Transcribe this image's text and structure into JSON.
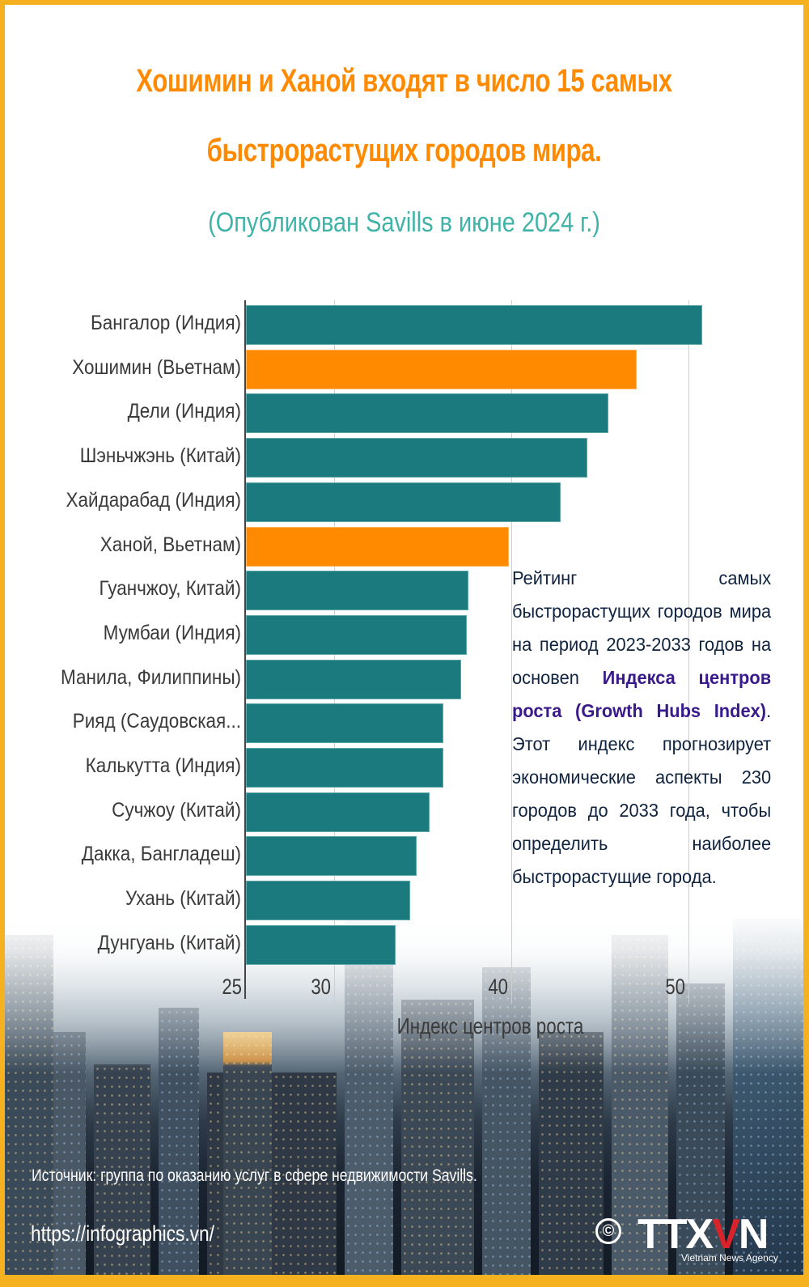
{
  "header": {
    "title_line1": "Хошимин и Ханой входят в число 15 самых",
    "title_line2": "быстрорастущих городов мира.",
    "subtitle": "(Опубликован Savills в июне 2024 г.)"
  },
  "colors": {
    "frame": "#f5b120",
    "title": "#ff8a00",
    "subtitle": "#3fb3a8",
    "bar_default": "#1a7a7e",
    "bar_highlight": "#ff8a00",
    "note_highlight": "#3a1a8a"
  },
  "chart_data": {
    "type": "bar",
    "orientation": "horizontal",
    "title": "Хошимин и Ханой входят в число 15 самых быстрорастущих городов мира.",
    "subtitle": "(Опубликован Savills в июне 2024 г.)",
    "xlabel": "Индекс центров роста",
    "ylabel": "",
    "xlim": [
      25,
      52
    ],
    "x_ticks": [
      "25",
      "30",
      "40",
      "50"
    ],
    "grid": true,
    "legend": null,
    "categories": [
      "Бангалор (Индия)",
      "Хошимин (Вьетнам)",
      "Дели (Индия)",
      "Шэньчжэнь (Китай)",
      "Хайдарабад (Индия)",
      "Ханой, Вьетнам)",
      "Гуанчжоу, Китай)",
      "Мумбаи (Индия)",
      "Манила, Филиппины)",
      "Рияд (Саудовская...",
      "Калькутта (Индия)",
      "Сучжоу (Китай)",
      "Дакка, Бангладеш)",
      "Ухань (Китай)",
      "Дунгуань (Китай)"
    ],
    "values": [
      50.8,
      47.1,
      45.5,
      44.3,
      42.8,
      39.9,
      37.6,
      37.5,
      37.2,
      36.2,
      36.2,
      35.4,
      34.7,
      34.3,
      33.5
    ],
    "highlighted": [
      false,
      true,
      false,
      false,
      false,
      true,
      false,
      false,
      false,
      false,
      false,
      false,
      false,
      false,
      false
    ]
  },
  "note": {
    "part1": "Рейтинг самых быстрорастущих городов мира на период 2023-2033 годов на основеn ",
    "highlight": "Индекса центров роста (Growth Hubs Index)",
    "part2": ". Этот индекс прогнозирует экономические аспекты 230 городов до 2033 года, чтобы определить наиболее быстрорастущие города."
  },
  "footer": {
    "source": "Источник: группа по оказанию услуг в сфере недвижимости Savills.",
    "url": "https://infographics.vn/",
    "copyright_symbol": "©",
    "logo_text_a": "TTX",
    "logo_text_v": "V",
    "logo_text_n": "N",
    "agency": "Vietnam News Agency"
  }
}
